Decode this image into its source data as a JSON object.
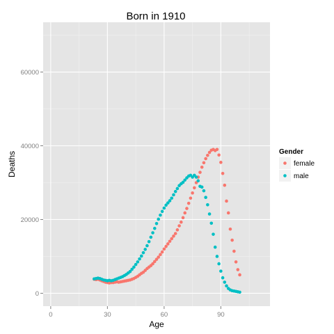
{
  "chart_data": {
    "type": "scatter",
    "title": "Born in  1910",
    "xlabel": "Age",
    "ylabel": "Deaths",
    "xlim": [
      -4,
      116
    ],
    "ylim": [
      -3500,
      73500
    ],
    "x_ticks": [
      0,
      30,
      60,
      90
    ],
    "y_ticks": [
      0,
      20000,
      40000,
      60000
    ],
    "x_tick_labels": [
      "0",
      "30",
      "60",
      "90"
    ],
    "y_tick_labels": [
      "0",
      "20000",
      "40000",
      "60000"
    ],
    "grid": true,
    "legend": {
      "title": "Gender",
      "position": "right",
      "entries": [
        {
          "label": "female",
          "color": "#F8766D"
        },
        {
          "label": "male",
          "color": "#00BFC4"
        }
      ]
    },
    "series": [
      {
        "name": "female",
        "color": "#F8766D",
        "x": [
          23,
          24,
          25,
          26,
          27,
          28,
          29,
          30,
          31,
          32,
          33,
          34,
          35,
          36,
          37,
          38,
          39,
          40,
          41,
          42,
          43,
          44,
          45,
          46,
          47,
          48,
          49,
          50,
          51,
          52,
          53,
          54,
          55,
          56,
          57,
          58,
          59,
          60,
          61,
          62,
          63,
          64,
          65,
          66,
          67,
          68,
          69,
          70,
          71,
          72,
          73,
          74,
          75,
          76,
          77,
          78,
          79,
          80,
          81,
          82,
          83,
          84,
          85,
          86,
          87,
          88,
          89,
          90,
          91,
          92,
          93,
          94,
          95,
          96,
          97,
          98,
          99,
          100
        ],
        "y": [
          3800,
          3700,
          3800,
          3600,
          3400,
          3200,
          3000,
          2900,
          2800,
          2900,
          2900,
          3000,
          3100,
          3000,
          3100,
          3200,
          3300,
          3400,
          3500,
          3600,
          3800,
          4000,
          4300,
          4600,
          5000,
          5400,
          5700,
          6200,
          6700,
          7100,
          7500,
          8000,
          8600,
          9200,
          9800,
          10500,
          11200,
          12000,
          12700,
          13400,
          14100,
          14800,
          15500,
          16200,
          17200,
          18300,
          19300,
          20500,
          21800,
          23000,
          24400,
          25800,
          27200,
          28600,
          30000,
          31500,
          32800,
          34200,
          35400,
          36500,
          37400,
          38200,
          38800,
          39000,
          38700,
          39000,
          37500,
          35500,
          32500,
          29300,
          25000,
          21800,
          17400,
          14400,
          11400,
          8500,
          6400,
          5000
        ]
      },
      {
        "name": "male",
        "color": "#00BFC4",
        "x": [
          23,
          24,
          25,
          26,
          27,
          28,
          29,
          30,
          31,
          32,
          33,
          34,
          35,
          36,
          37,
          38,
          39,
          40,
          41,
          42,
          43,
          44,
          45,
          46,
          47,
          48,
          49,
          50,
          51,
          52,
          53,
          54,
          55,
          56,
          57,
          58,
          59,
          60,
          61,
          62,
          63,
          64,
          65,
          66,
          67,
          68,
          69,
          70,
          71,
          72,
          73,
          74,
          75,
          76,
          77,
          78,
          79,
          80,
          81,
          82,
          83,
          84,
          85,
          86,
          87,
          88,
          89,
          90,
          91,
          92,
          93,
          94,
          95,
          96,
          97,
          98,
          99,
          100
        ],
        "y": [
          3900,
          4000,
          4100,
          4000,
          3800,
          3600,
          3500,
          3400,
          3500,
          3400,
          3500,
          3700,
          3900,
          4100,
          4300,
          4500,
          4800,
          5100,
          5500,
          5900,
          6500,
          7100,
          7800,
          8500,
          9300,
          10100,
          11000,
          11900,
          12900,
          14000,
          15200,
          16400,
          17600,
          18900,
          20100,
          21200,
          22200,
          23100,
          23900,
          24500,
          25100,
          25800,
          26700,
          27600,
          28400,
          29200,
          29700,
          30100,
          30700,
          31300,
          31800,
          32000,
          31500,
          32000,
          31500,
          30500,
          29000,
          28800,
          27800,
          26000,
          24000,
          21500,
          19000,
          16000,
          12500,
          10000,
          8000,
          6000,
          4200,
          3000,
          2000,
          1300,
          900,
          700,
          600,
          500,
          400,
          300
        ]
      }
    ]
  }
}
